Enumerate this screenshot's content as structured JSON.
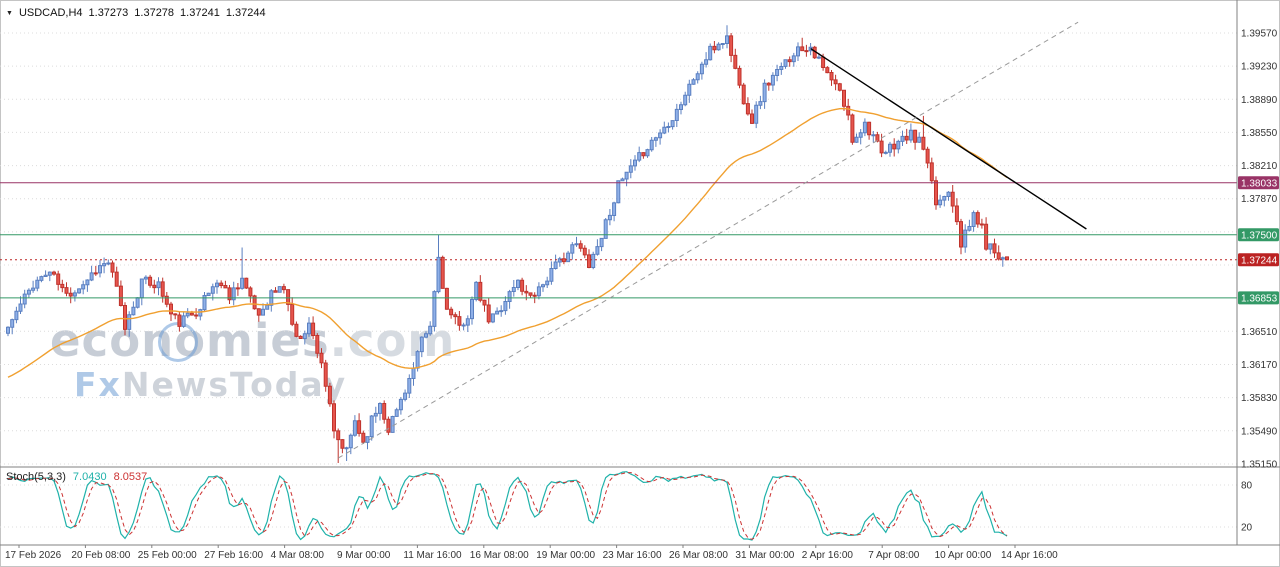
{
  "window": {
    "symbol_label": "USDCAD,H4",
    "quote": {
      "open": "1.37273",
      "high": "1.37278",
      "low": "1.37241",
      "close": "1.37244"
    }
  },
  "watermark": {
    "brand": "economies",
    "tld": ".com",
    "subbrand_fx": "Fx",
    "subbrand_rest": "NewsToday"
  },
  "indicator_panel": {
    "label": "Stoch(5,3,3)",
    "k_value": "7.0430",
    "d_value": "8.0537"
  },
  "axes": {
    "price_ticks": [
      {
        "label": "1.39570",
        "price": 1.3957
      },
      {
        "label": "1.39230",
        "price": 1.3923
      },
      {
        "label": "1.38890",
        "price": 1.3889
      },
      {
        "label": "1.38550",
        "price": 1.3855
      },
      {
        "label": "1.38210",
        "price": 1.3821
      },
      {
        "label": "1.37870",
        "price": 1.3787
      },
      {
        "label": "1.36510",
        "price": 1.3651
      },
      {
        "label": "1.36170",
        "price": 1.3617
      },
      {
        "label": "1.35830",
        "price": 1.3583
      },
      {
        "label": "1.35490",
        "price": 1.3549
      },
      {
        "label": "1.35150",
        "price": 1.3515
      }
    ],
    "grid_only_prices": [
      1.3753,
      1.3719
    ],
    "stoch_ticks": [
      {
        "label": "80",
        "value": 80
      },
      {
        "label": "20",
        "value": 20
      }
    ],
    "time_labels": [
      "17 Feb 2026",
      "20 Feb 08:00",
      "25 Feb 00:00",
      "27 Feb 16:00",
      "4 Mar 08:00",
      "9 Mar 00:00",
      "11 Mar 16:00",
      "16 Mar 08:00",
      "19 Mar 00:00",
      "23 Mar 16:00",
      "26 Mar 08:00",
      "31 Mar 00:00",
      "2 Apr 16:00",
      "7 Apr 08:00",
      "10 Apr 00:00",
      "14 Apr 16:00"
    ]
  },
  "chart_data": {
    "type": "candlestick",
    "symbol": "USDCAD",
    "timeframe": "H4",
    "title": "USDCAD H4 with descending resistance trendline, ascending support trendline, EMA and Stochastic(5,3,3)",
    "y_range": [
      1.3515,
      1.3957
    ],
    "price_grid_step": 0.0034,
    "candles_total": 240,
    "close_anchors": [
      [
        0,
        1.3655
      ],
      [
        3,
        1.3678
      ],
      [
        6,
        1.37
      ],
      [
        10,
        1.3712
      ],
      [
        14,
        1.3688
      ],
      [
        18,
        1.37
      ],
      [
        21,
        1.3715
      ],
      [
        24,
        1.3722
      ],
      [
        26,
        1.3694
      ],
      [
        28,
        1.3655
      ],
      [
        32,
        1.3702
      ],
      [
        36,
        1.3699
      ],
      [
        39,
        1.3668
      ],
      [
        41,
        1.366
      ],
      [
        45,
        1.3672
      ],
      [
        48,
        1.369
      ],
      [
        50,
        1.3703
      ],
      [
        53,
        1.3688
      ],
      [
        56,
        1.3706
      ],
      [
        58,
        1.3682
      ],
      [
        60,
        1.3668
      ],
      [
        63,
        1.369
      ],
      [
        66,
        1.3696
      ],
      [
        69,
        1.3642
      ],
      [
        72,
        1.3658
      ],
      [
        75,
        1.362
      ],
      [
        77,
        1.3572
      ],
      [
        78,
        1.3545
      ],
      [
        80,
        1.3532
      ],
      [
        81,
        1.3527
      ],
      [
        83,
        1.356
      ],
      [
        85,
        1.3537
      ],
      [
        87,
        1.356
      ],
      [
        89,
        1.3578
      ],
      [
        91,
        1.3552
      ],
      [
        93,
        1.357
      ],
      [
        95,
        1.3592
      ],
      [
        97,
        1.3612
      ],
      [
        99,
        1.364
      ],
      [
        101,
        1.3655
      ],
      [
        103,
        1.3727
      ],
      [
        105,
        1.3672
      ],
      [
        108,
        1.3655
      ],
      [
        110,
        1.3668
      ],
      [
        112,
        1.3696
      ],
      [
        115,
        1.3662
      ],
      [
        117,
        1.367
      ],
      [
        119,
        1.3684
      ],
      [
        122,
        1.3702
      ],
      [
        124,
        1.3688
      ],
      [
        126,
        1.3692
      ],
      [
        128,
        1.37
      ],
      [
        130,
        1.3712
      ],
      [
        133,
        1.3728
      ],
      [
        136,
        1.374
      ],
      [
        139,
        1.3722
      ],
      [
        141,
        1.3738
      ],
      [
        143,
        1.3762
      ],
      [
        146,
        1.38
      ],
      [
        148,
        1.3812
      ],
      [
        150,
        1.3822
      ],
      [
        152,
        1.3836
      ],
      [
        154,
        1.3846
      ],
      [
        157,
        1.386
      ],
      [
        159,
        1.3872
      ],
      [
        161,
        1.3886
      ],
      [
        164,
        1.391
      ],
      [
        166,
        1.3924
      ],
      [
        168,
        1.3938
      ],
      [
        170,
        1.3946
      ],
      [
        172,
        1.3952
      ],
      [
        174,
        1.392
      ],
      [
        175,
        1.3902
      ],
      [
        177,
        1.3878
      ],
      [
        178,
        1.3868
      ],
      [
        181,
        1.3902
      ],
      [
        183,
        1.3912
      ],
      [
        185,
        1.392
      ],
      [
        188,
        1.3938
      ],
      [
        190,
        1.3942
      ],
      [
        192,
        1.3944
      ],
      [
        195,
        1.392
      ],
      [
        197,
        1.3908
      ],
      [
        199,
        1.3896
      ],
      [
        201,
        1.387
      ],
      [
        202,
        1.3848
      ],
      [
        205,
        1.3864
      ],
      [
        207,
        1.3852
      ],
      [
        209,
        1.383
      ],
      [
        212,
        1.3843
      ],
      [
        214,
        1.3848
      ],
      [
        216,
        1.3852
      ],
      [
        218,
        1.3846
      ],
      [
        219,
        1.3838
      ],
      [
        221,
        1.38
      ],
      [
        222,
        1.3782
      ],
      [
        224,
        1.379
      ],
      [
        225,
        1.3798
      ],
      [
        227,
        1.3768
      ],
      [
        228,
        1.3742
      ],
      [
        230,
        1.3758
      ],
      [
        231,
        1.3772
      ],
      [
        233,
        1.3756
      ],
      [
        234,
        1.374
      ],
      [
        236,
        1.3734
      ],
      [
        237,
        1.373
      ],
      [
        239,
        1.37244
      ]
    ],
    "wick_overrides": {
      "56": {
        "high": 1.3737
      },
      "79": {
        "low": 1.3516
      },
      "81": {
        "low": 1.3518
      },
      "103": {
        "high": 1.375
      },
      "172": {
        "high": 1.3965
      },
      "190": {
        "high": 1.3952
      },
      "219": {
        "high": 1.3872
      }
    },
    "last_candle": {
      "open": 1.37273,
      "high": 1.37278,
      "low": 1.37241,
      "close": 1.37244
    },
    "levels": [
      {
        "price": 1.38033,
        "label": "1.38033",
        "color": "#993366",
        "style": "solid",
        "role": "resistance"
      },
      {
        "price": 1.375,
        "label": "1.37500",
        "color": "#339966",
        "style": "solid",
        "role": "support"
      },
      {
        "price": 1.36853,
        "label": "1.36853",
        "color": "#339966",
        "style": "solid",
        "role": "support"
      },
      {
        "price": 1.37244,
        "label": "1.37244",
        "color": "#bb2222",
        "style": "dotted",
        "role": "current-price"
      }
    ],
    "trendlines": [
      {
        "name": "descending-resistance",
        "color": "#000000",
        "style": "solid",
        "from": {
          "i": 192,
          "price": 1.3941
        },
        "to": {
          "i": 258,
          "price": 1.3756
        }
      },
      {
        "name": "ascending-support",
        "color": "#9a9a9a",
        "style": "dashed",
        "from": {
          "i": 79,
          "price": 1.3521
        },
        "to": {
          "i": 256,
          "price": 1.3968
        }
      }
    ],
    "stochastic": {
      "params": "5,3,3",
      "k_current": 7.043,
      "d_current": 8.0537,
      "levels": [
        20,
        80
      ]
    },
    "colors": {
      "up": "#8fb0e8",
      "up_border": "#5a7fc0",
      "down": "#e6554d",
      "down_border": "#bf332c",
      "ma": "#f0a030",
      "grid": "#dcdcdc",
      "stoch_k": "#20b2aa",
      "stoch_d": "#cc3333",
      "axis_text": "#333333",
      "separator": "#808080"
    }
  }
}
